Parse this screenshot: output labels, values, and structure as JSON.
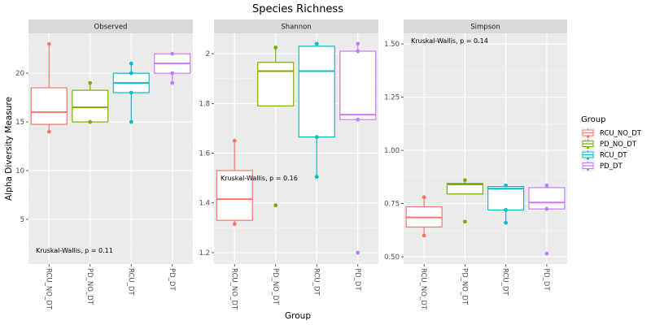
{
  "chart_data": {
    "type": "boxplot",
    "title": "Species Richness",
    "xlabel": "Group",
    "ylabel": "Alpha Diversity Measure",
    "categories": [
      "RCU_NO_DT",
      "PD_NO_DT",
      "RCU_DT",
      "PD_DT"
    ],
    "colors": {
      "RCU_NO_DT": "#F8766D",
      "PD_NO_DT": "#7CAE00",
      "RCU_DT": "#00BFC4",
      "PD_DT": "#C77CFF"
    },
    "legend": {
      "title": "Group",
      "position": "right",
      "entries": [
        "RCU_NO_DT",
        "PD_NO_DT",
        "RCU_DT",
        "PD_DT"
      ]
    },
    "grid": true,
    "panels": [
      {
        "name": "Observed",
        "ylim": [
          0.4,
          24.1
        ],
        "yticks": [
          5,
          10,
          15,
          20
        ],
        "annotation": "Kruskal-Wallis, p = 0.11",
        "annotation_pos": "bottom-left",
        "boxes": [
          {
            "group": "RCU_NO_DT",
            "whisker_low": 14,
            "q1": 14.75,
            "median": 16,
            "q3": 18.5,
            "whisker_high": 23,
            "points": [
              23,
              14
            ],
            "outliers": []
          },
          {
            "group": "PD_NO_DT",
            "whisker_low": 15,
            "q1": 15,
            "median": 16.5,
            "q3": 18.25,
            "whisker_high": 19,
            "points": [
              19,
              15
            ],
            "outliers": []
          },
          {
            "group": "RCU_DT",
            "whisker_low": 15,
            "q1": 18,
            "median": 19,
            "q3": 20,
            "whisker_high": 21,
            "points": [
              21,
              20,
              18,
              15
            ],
            "outliers": []
          },
          {
            "group": "PD_DT",
            "whisker_low": 19,
            "q1": 20,
            "median": 21,
            "q3": 22,
            "whisker_high": 22,
            "points": [
              22,
              20,
              19
            ],
            "outliers": []
          }
        ]
      },
      {
        "name": "Shannon",
        "ylim": [
          1.154,
          2.082
        ],
        "yticks": [
          1.2,
          1.4,
          1.6,
          1.8,
          2.0
        ],
        "annotation": "Kruskal-Wallis, p = 0.16",
        "annotation_pos": "middle-left",
        "boxes": [
          {
            "group": "RCU_NO_DT",
            "whisker_low": 1.315,
            "q1": 1.33,
            "median": 1.415,
            "q3": 1.53,
            "whisker_high": 1.65,
            "points": [
              1.65,
              1.315
            ],
            "outliers": []
          },
          {
            "group": "PD_NO_DT",
            "whisker_low": 1.79,
            "q1": 1.79,
            "median": 1.93,
            "q3": 1.965,
            "whisker_high": 2.025,
            "points": [
              2.025
            ],
            "outliers": [
              1.39
            ]
          },
          {
            "group": "RCU_DT",
            "whisker_low": 1.505,
            "q1": 1.665,
            "median": 1.93,
            "q3": 2.03,
            "whisker_high": 2.04,
            "points": [
              2.04,
              1.665,
              1.505
            ],
            "outliers": []
          },
          {
            "group": "PD_DT",
            "whisker_low": 1.735,
            "q1": 1.735,
            "median": 1.755,
            "q3": 2.01,
            "whisker_high": 2.04,
            "points": [
              2.04,
              2.01,
              1.735
            ],
            "outliers": [
              1.2
            ]
          }
        ]
      },
      {
        "name": "Simpson",
        "ylim": [
          0.466,
          1.55
        ],
        "yticks": [
          0.5,
          0.75,
          1.0,
          1.25,
          1.5
        ],
        "ytick_labels": [
          "0.50",
          "0.75",
          "1.00",
          "1.25",
          "1.50"
        ],
        "annotation": "Kruskal-Wallis, p = 0.14",
        "annotation_pos": "top-left",
        "boxes": [
          {
            "group": "RCU_NO_DT",
            "whisker_low": 0.6,
            "q1": 0.64,
            "median": 0.685,
            "q3": 0.735,
            "whisker_high": 0.78,
            "points": [
              0.78,
              0.6
            ],
            "outliers": []
          },
          {
            "group": "PD_NO_DT",
            "whisker_low": 0.795,
            "q1": 0.795,
            "median": 0.84,
            "q3": 0.845,
            "whisker_high": 0.86,
            "points": [
              0.86
            ],
            "outliers": [
              0.665
            ]
          },
          {
            "group": "RCU_DT",
            "whisker_low": 0.66,
            "q1": 0.72,
            "median": 0.82,
            "q3": 0.83,
            "whisker_high": 0.835,
            "points": [
              0.835,
              0.72,
              0.66
            ],
            "outliers": []
          },
          {
            "group": "PD_DT",
            "whisker_low": 0.725,
            "q1": 0.725,
            "median": 0.755,
            "q3": 0.825,
            "whisker_high": 0.835,
            "points": [
              0.835,
              0.725
            ],
            "outliers": [
              0.515
            ]
          }
        ]
      }
    ]
  }
}
